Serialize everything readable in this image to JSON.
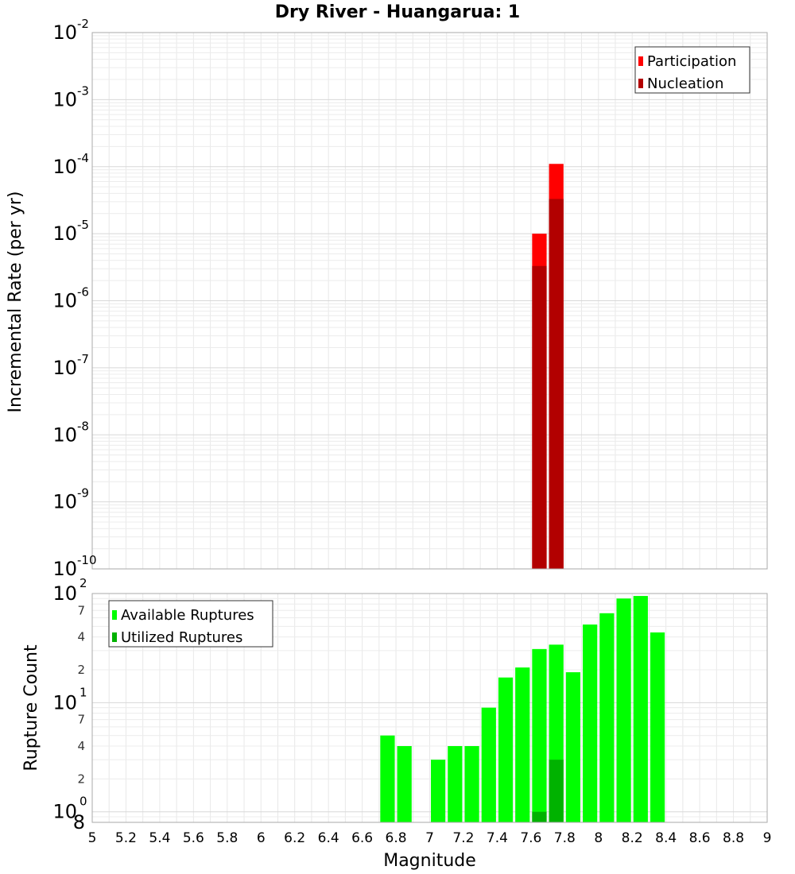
{
  "chart_data": [
    {
      "type": "bar",
      "title": "Dry River - Huangarua: 1",
      "ylabel": "Incremental Rate (per yr)",
      "yscale": "log",
      "ylim": [
        1e-10,
        0.01
      ],
      "ytick_bases": [
        "10",
        "10",
        "10",
        "10",
        "10",
        "10",
        "10",
        "10",
        "10"
      ],
      "ytick_exponents": [
        "-10",
        "-9",
        "-8",
        "-7",
        "-6",
        "-5",
        "-4",
        "-3",
        "-2"
      ],
      "legend_position": "top-right",
      "series": [
        {
          "name": "Participation",
          "color": "#ff0000",
          "x": [
            7.65,
            7.75
          ],
          "values": [
            1e-05,
            0.00011
          ]
        },
        {
          "name": "Nucleation",
          "color": "#b20000",
          "x": [
            7.65,
            7.75
          ],
          "values": [
            3.3e-06,
            3.3e-05
          ]
        }
      ]
    },
    {
      "type": "bar",
      "ylabel": "Rupture Count",
      "yscale": "log",
      "ylim": [
        0.8,
        100
      ],
      "major_tick_bases": [
        "10",
        "10",
        "10"
      ],
      "major_tick_exponents": [
        "0",
        "1",
        "2"
      ],
      "bottom_tick_label": "8",
      "minor_tick_labels": [
        "2",
        "4",
        "7",
        "2",
        "4",
        "7"
      ],
      "legend_position": "top-left",
      "xlabel": "Magnitude",
      "xlim": [
        5,
        9
      ],
      "xtick_labels": [
        "5",
        "5.2",
        "5.4",
        "5.6",
        "5.8",
        "6",
        "6.2",
        "6.4",
        "6.6",
        "6.8",
        "7",
        "7.2",
        "7.4",
        "7.6",
        "7.8",
        "8",
        "8.2",
        "8.4",
        "8.6",
        "8.8",
        "9"
      ],
      "series": [
        {
          "name": "Available Ruptures",
          "color": "#00ff00",
          "x": [
            6.75,
            6.85,
            7.05,
            7.15,
            7.25,
            7.35,
            7.45,
            7.55,
            7.65,
            7.75,
            7.85,
            7.95,
            8.05,
            8.15,
            8.25,
            8.35
          ],
          "values": [
            5,
            4,
            3,
            4,
            4,
            9,
            17,
            21,
            31,
            34,
            19,
            52,
            66,
            90,
            95,
            44
          ]
        },
        {
          "name": "Utilized Ruptures",
          "color": "#00b200",
          "x": [
            7.65,
            7.75
          ],
          "values": [
            1,
            3
          ]
        }
      ]
    }
  ]
}
